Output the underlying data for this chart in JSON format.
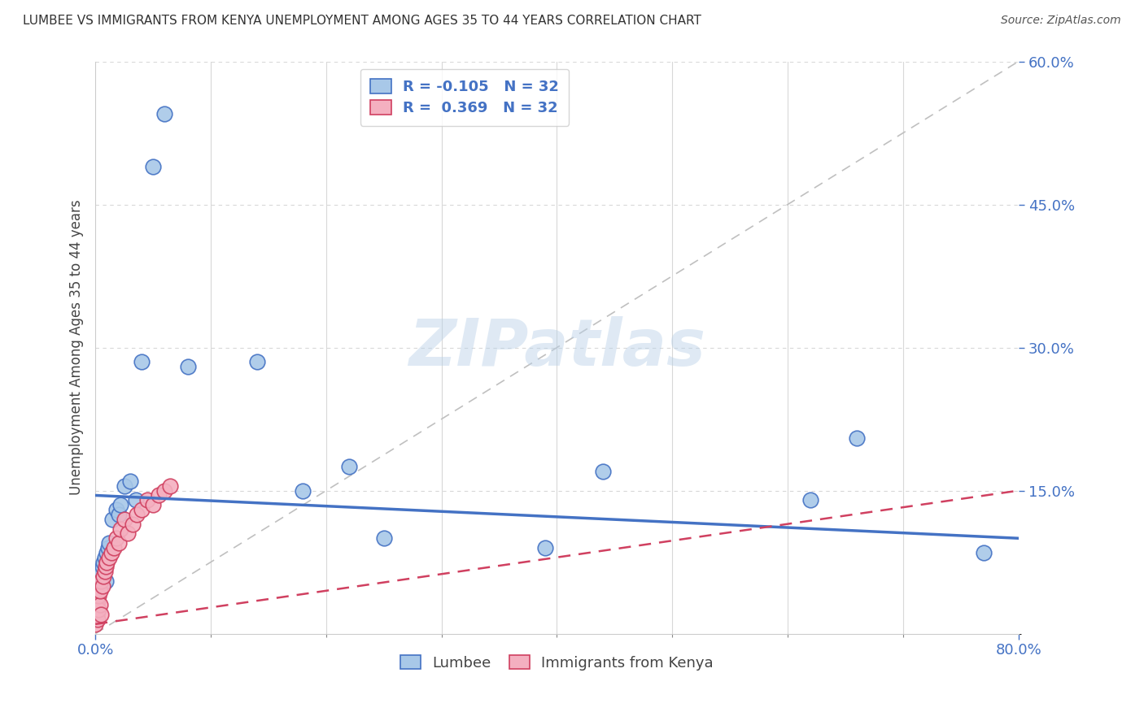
{
  "title": "LUMBEE VS IMMIGRANTS FROM KENYA UNEMPLOYMENT AMONG AGES 35 TO 44 YEARS CORRELATION CHART",
  "source": "Source: ZipAtlas.com",
  "ylabel": "Unemployment Among Ages 35 to 44 years",
  "x_min": 0.0,
  "x_max": 0.8,
  "y_min": 0.0,
  "y_max": 0.6,
  "lumbee_color": "#a8c8e8",
  "kenya_color": "#f4b0c0",
  "lumbee_line_color": "#4472c4",
  "kenya_line_color": "#d04060",
  "lumbee_R": -0.105,
  "lumbee_N": 32,
  "kenya_R": 0.369,
  "kenya_N": 32,
  "lumbee_x": [
    0.001,
    0.002,
    0.003,
    0.004,
    0.005,
    0.006,
    0.007,
    0.008,
    0.009,
    0.01,
    0.011,
    0.012,
    0.015,
    0.018,
    0.02,
    0.022,
    0.025,
    0.03,
    0.035,
    0.04,
    0.05,
    0.06,
    0.08,
    0.14,
    0.18,
    0.22,
    0.25,
    0.39,
    0.44,
    0.62,
    0.66,
    0.77
  ],
  "lumbee_y": [
    0.05,
    0.055,
    0.045,
    0.06,
    0.065,
    0.07,
    0.075,
    0.08,
    0.055,
    0.085,
    0.09,
    0.095,
    0.12,
    0.13,
    0.125,
    0.135,
    0.155,
    0.16,
    0.14,
    0.285,
    0.49,
    0.545,
    0.28,
    0.285,
    0.15,
    0.175,
    0.1,
    0.09,
    0.17,
    0.14,
    0.205,
    0.085
  ],
  "kenya_x": [
    0.0,
    0.001,
    0.001,
    0.002,
    0.002,
    0.003,
    0.003,
    0.004,
    0.004,
    0.005,
    0.005,
    0.006,
    0.007,
    0.008,
    0.009,
    0.01,
    0.012,
    0.014,
    0.016,
    0.018,
    0.02,
    0.022,
    0.025,
    0.028,
    0.032,
    0.036,
    0.04,
    0.045,
    0.05,
    0.055,
    0.06,
    0.065
  ],
  "kenya_y": [
    0.01,
    0.02,
    0.03,
    0.015,
    0.035,
    0.025,
    0.04,
    0.03,
    0.045,
    0.02,
    0.055,
    0.05,
    0.06,
    0.065,
    0.07,
    0.075,
    0.08,
    0.085,
    0.09,
    0.1,
    0.095,
    0.11,
    0.12,
    0.105,
    0.115,
    0.125,
    0.13,
    0.14,
    0.135,
    0.145,
    0.15,
    0.155
  ],
  "watermark": "ZIPatlas",
  "background_color": "#ffffff",
  "grid_color": "#d8d8d8"
}
